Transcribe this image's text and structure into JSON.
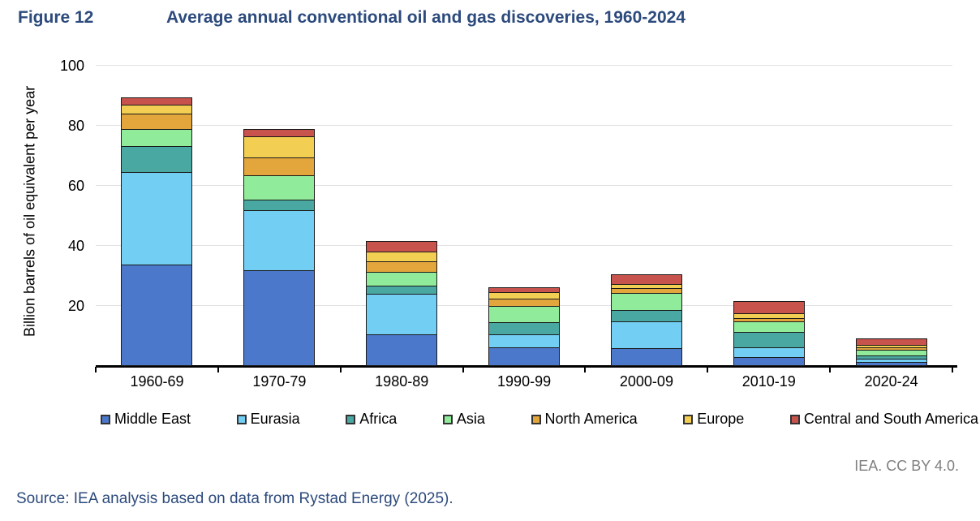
{
  "header": {
    "figure_label": "Figure 12",
    "title": "Average annual conventional oil and gas discoveries, 1960-2024"
  },
  "chart_data": {
    "type": "bar",
    "stacked": true,
    "title": "Average annual conventional oil and gas discoveries, 1960-2024",
    "categories": [
      "1960-69",
      "1970-79",
      "1980-89",
      "1990-99",
      "2000-09",
      "2010-19",
      "2020-24"
    ],
    "series": [
      {
        "name": "Middle East",
        "color": "#4B78CB",
        "values": [
          33.6,
          31.5,
          10.2,
          5.9,
          5.8,
          2.6,
          1.0
        ]
      },
      {
        "name": "Eurasia",
        "color": "#73CEF4",
        "values": [
          30.8,
          20.0,
          13.5,
          4.2,
          8.8,
          3.3,
          1.2
        ]
      },
      {
        "name": "Africa",
        "color": "#4AA8A2",
        "values": [
          8.7,
          3.6,
          2.7,
          4.1,
          3.9,
          5.2,
          1.2
        ]
      },
      {
        "name": "Asia",
        "color": "#90EB9B",
        "values": [
          5.6,
          8.0,
          4.5,
          5.4,
          5.6,
          3.5,
          1.9
        ]
      },
      {
        "name": "North America",
        "color": "#E2A63C",
        "values": [
          5.2,
          5.9,
          3.6,
          2.5,
          1.6,
          1.2,
          0.7
        ]
      },
      {
        "name": "Europe",
        "color": "#F2CF52",
        "values": [
          2.9,
          6.9,
          3.2,
          2.2,
          1.3,
          1.7,
          0.8
        ]
      },
      {
        "name": "Central and South America",
        "color": "#C8524C",
        "values": [
          2.3,
          2.5,
          3.5,
          1.6,
          3.2,
          4.1,
          2.2
        ]
      }
    ],
    "totals": [
      89.1,
      78.4,
      41.2,
      25.9,
      30.2,
      21.6,
      9.0
    ],
    "xlabel": "",
    "ylabel": "Billion barrels of oil equivalent per year",
    "ylim": [
      0,
      100
    ],
    "y_ticks": [
      20,
      40,
      60,
      80,
      100
    ],
    "grid": true,
    "legend_position": "bottom"
  },
  "footer": {
    "credit": "IEA. CC BY 4.0.",
    "source": "Source: IEA analysis based on data from Rystad Energy (2025)."
  },
  "colors": {
    "title_navy": "#2C4A7C",
    "credit_gray": "#808080",
    "gridline": "#E2E2E2",
    "axis": "#000000",
    "segment_border": "#1a1a1a"
  }
}
